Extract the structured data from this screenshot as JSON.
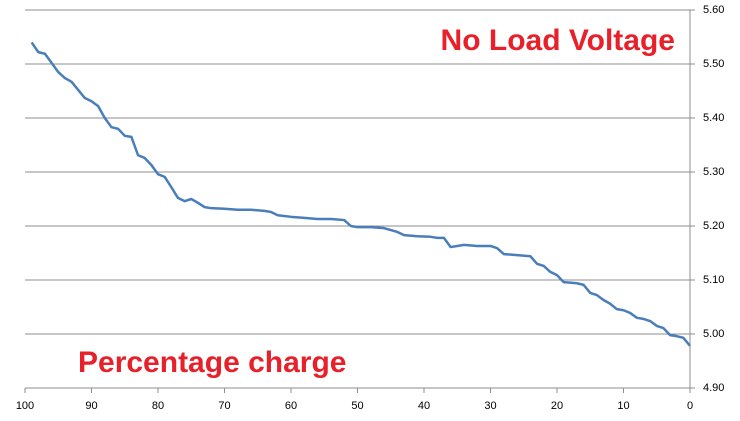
{
  "chart_data": {
    "type": "line",
    "annotations": [
      "No Load Voltage",
      "Percentage charge"
    ],
    "x": [
      99,
      98,
      97,
      96,
      95,
      94,
      93,
      92,
      91,
      90,
      89,
      88,
      87,
      86,
      85,
      84,
      83,
      82,
      81,
      80,
      79,
      78,
      77,
      76,
      75,
      74,
      73,
      72,
      70,
      68,
      66,
      64,
      63,
      62,
      60,
      58,
      56,
      54,
      52,
      51,
      50,
      48,
      46,
      44,
      43,
      41,
      39,
      38,
      37,
      36,
      35,
      34,
      32,
      30,
      29,
      28,
      26,
      24,
      23,
      22,
      21,
      20,
      19,
      17,
      16,
      15,
      14,
      13,
      12,
      11,
      10,
      9,
      8,
      7,
      6,
      5,
      4,
      3,
      2,
      1,
      0
    ],
    "series": [
      {
        "name": "No Load Voltage",
        "color": "#4a7ebb",
        "values": [
          5.54,
          5.522,
          5.519,
          5.502,
          5.485,
          5.474,
          5.467,
          5.452,
          5.437,
          5.431,
          5.422,
          5.4,
          5.383,
          5.38,
          5.367,
          5.365,
          5.331,
          5.326,
          5.313,
          5.296,
          5.291,
          5.272,
          5.252,
          5.246,
          5.25,
          5.243,
          5.235,
          5.233,
          5.232,
          5.23,
          5.23,
          5.228,
          5.226,
          5.22,
          5.217,
          5.215,
          5.213,
          5.213,
          5.211,
          5.2,
          5.198,
          5.198,
          5.196,
          5.189,
          5.183,
          5.181,
          5.18,
          5.178,
          5.178,
          5.161,
          5.163,
          5.165,
          5.163,
          5.163,
          5.159,
          5.148,
          5.146,
          5.144,
          5.13,
          5.126,
          5.115,
          5.109,
          5.096,
          5.094,
          5.091,
          5.076,
          5.072,
          5.063,
          5.056,
          5.046,
          5.044,
          5.039,
          5.03,
          5.028,
          5.024,
          5.015,
          5.011,
          4.998,
          4.996,
          4.993,
          4.978
        ]
      }
    ],
    "xlim": [
      100,
      0
    ],
    "xticks": [
      100,
      90,
      80,
      70,
      60,
      50,
      40,
      30,
      20,
      10,
      0
    ],
    "ylim": [
      4.9,
      5.6
    ],
    "yticks": [
      {
        "value": 4.9,
        "label": "4.90"
      },
      {
        "value": 5.0,
        "label": "5.00"
      },
      {
        "value": 5.1,
        "label": "5.10"
      },
      {
        "value": 5.2,
        "label": "5.20"
      },
      {
        "value": 5.3,
        "label": "5.30"
      },
      {
        "value": 5.4,
        "label": "5.40"
      },
      {
        "value": 5.5,
        "label": "5.50"
      },
      {
        "value": 5.6,
        "label": "5.60"
      }
    ],
    "y_axis_side": "right",
    "grid": true
  }
}
